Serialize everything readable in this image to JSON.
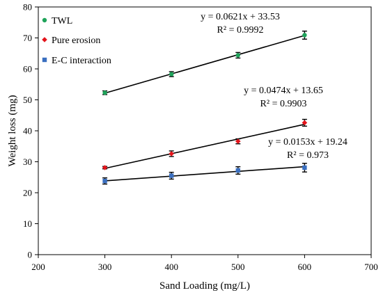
{
  "chart_data": {
    "type": "scatter",
    "xlabel": "Sand Loading (mg/L)",
    "ylabel": "Weight loss (mg)",
    "xlim": [
      200,
      700
    ],
    "ylim": [
      0,
      80
    ],
    "xticks": [
      200,
      300,
      400,
      500,
      600,
      700
    ],
    "yticks": [
      0,
      10,
      20,
      30,
      40,
      50,
      60,
      70,
      80
    ],
    "grid": false,
    "legend_position": "top-left",
    "series": [
      {
        "name": "TWL",
        "color": "#1fa35a",
        "marker": "circle",
        "x": [
          300,
          400,
          500,
          600
        ],
        "y": [
          52.3,
          58.3,
          64.4,
          70.9
        ],
        "err": [
          0.6,
          0.8,
          0.9,
          1.3
        ],
        "fit": {
          "slope": 0.0621,
          "intercept": 33.53
        },
        "equation": "y = 0.0621x + 33.53",
        "r2": "R² = 0.9992"
      },
      {
        "name": "Pure erosion",
        "color": "#e3141b",
        "marker": "diamond",
        "x": [
          300,
          400,
          500,
          600
        ],
        "y": [
          28.1,
          32.6,
          36.6,
          42.6
        ],
        "err": [
          0.4,
          0.9,
          0.8,
          1.1
        ],
        "fit": {
          "slope": 0.0474,
          "intercept": 13.65
        },
        "equation": "y = 0.0474x + 13.65",
        "r2": "R² = 0.9903"
      },
      {
        "name": "E-C interaction",
        "color": "#3a6fc0",
        "marker": "square",
        "x": [
          300,
          400,
          500,
          600
        ],
        "y": [
          23.8,
          25.5,
          27.2,
          28.1
        ],
        "err": [
          1.0,
          1.1,
          1.2,
          1.4
        ],
        "fit": {
          "slope": 0.0153,
          "intercept": 19.24
        },
        "equation": "y = 0.0153x + 19.24",
        "r2": "R² = 0.973"
      }
    ]
  }
}
